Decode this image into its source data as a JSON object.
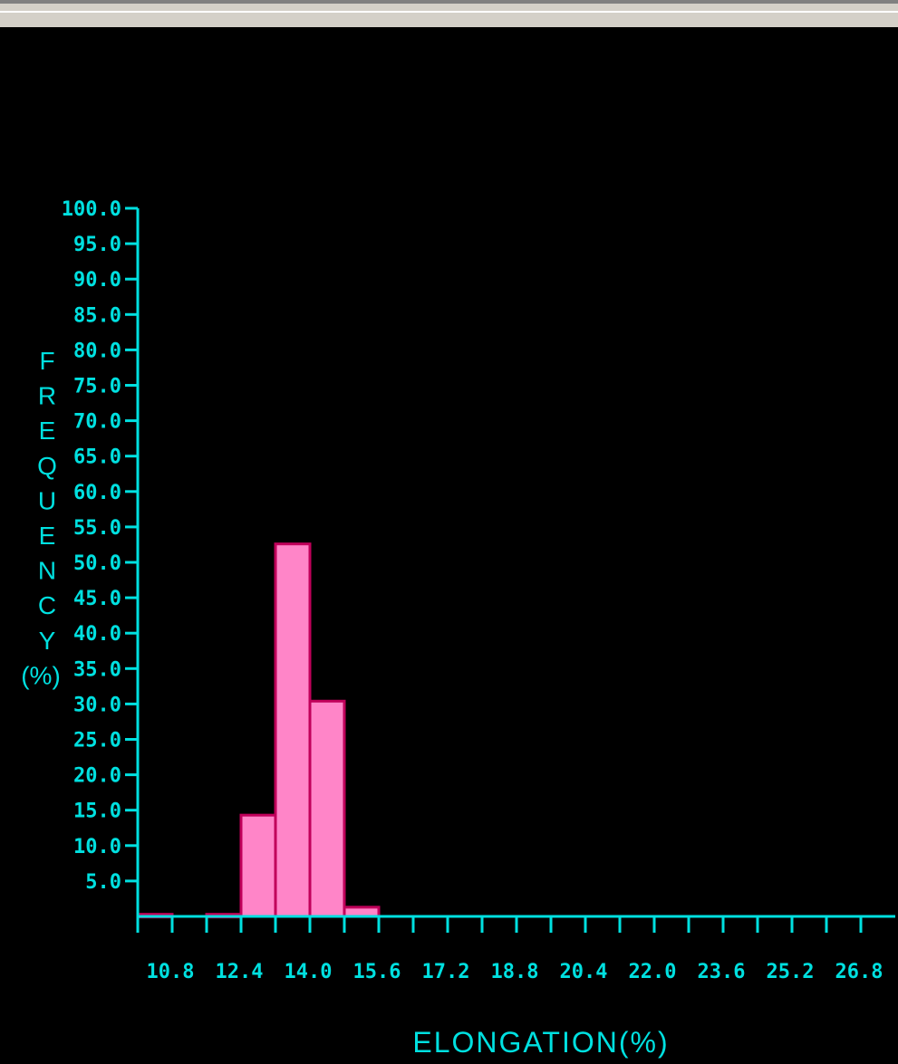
{
  "colors": {
    "background": "#000000",
    "axis": "#00e0e0",
    "bar_fill": "#ff85c8",
    "bar_stroke": "#c0005a",
    "window_chrome": "#d4d0c8"
  },
  "chart_data": {
    "type": "bar",
    "title": "",
    "xlabel": "ELONGATION(%)",
    "ylabel": "FREQUENCY (%)",
    "ylabel_letters": [
      "F",
      "R",
      "E",
      "Q",
      "U",
      "E",
      "N",
      "C",
      "Y",
      "(%)"
    ],
    "ylim": [
      0,
      100
    ],
    "y_ticks": [
      "5.0",
      "10.0",
      "15.0",
      "20.0",
      "25.0",
      "30.0",
      "35.0",
      "40.0",
      "45.0",
      "50.0",
      "55.0",
      "60.0",
      "65.0",
      "70.0",
      "75.0",
      "80.0",
      "85.0",
      "90.0",
      "95.0",
      "100.0"
    ],
    "x_tick_labels": [
      "10.8",
      "12.4",
      "14.0",
      "15.6",
      "17.2",
      "18.8",
      "20.4",
      "22.0",
      "23.6",
      "25.2",
      "26.8"
    ],
    "bin_width": 0.8,
    "bins": [
      {
        "start": 10.0,
        "value": 0.3
      },
      {
        "start": 10.8,
        "value": 0
      },
      {
        "start": 11.6,
        "value": 0.3
      },
      {
        "start": 12.4,
        "value": 14.3
      },
      {
        "start": 13.2,
        "value": 52.6
      },
      {
        "start": 14.0,
        "value": 30.4
      },
      {
        "start": 14.8,
        "value": 1.3
      },
      {
        "start": 15.6,
        "value": 0
      },
      {
        "start": 16.4,
        "value": 0
      },
      {
        "start": 17.2,
        "value": 0
      },
      {
        "start": 18.0,
        "value": 0
      },
      {
        "start": 18.8,
        "value": 0
      },
      {
        "start": 19.6,
        "value": 0
      },
      {
        "start": 20.4,
        "value": 0
      },
      {
        "start": 21.2,
        "value": 0
      },
      {
        "start": 22.0,
        "value": 0
      },
      {
        "start": 22.8,
        "value": 0
      },
      {
        "start": 23.6,
        "value": 0
      },
      {
        "start": 24.4,
        "value": 0
      },
      {
        "start": 25.2,
        "value": 0
      },
      {
        "start": 26.0,
        "value": 0
      },
      {
        "start": 26.8,
        "value": 0
      }
    ],
    "grid": false,
    "legend": "none"
  }
}
